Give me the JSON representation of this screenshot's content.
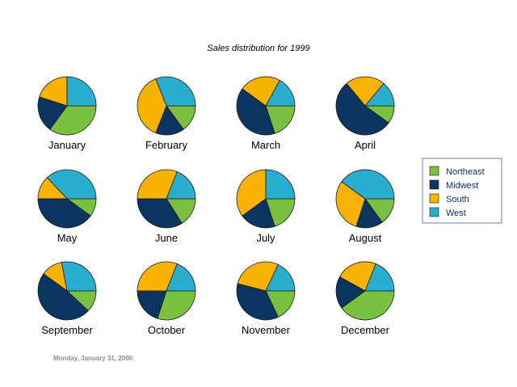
{
  "chart_data": {
    "type": "pie",
    "title": "Sales distribution for 1999",
    "footer": "Monday, January 31, 2000",
    "series_names": [
      "Northeast",
      "Midwest",
      "South",
      "West"
    ],
    "colors": {
      "Northeast": "#7ac142",
      "Midwest": "#0b3560",
      "South": "#f8b200",
      "West": "#2aaed0"
    },
    "legend_position": "right",
    "pies": [
      {
        "label": "January",
        "values": [
          35,
          20,
          20,
          25
        ]
      },
      {
        "label": "February",
        "values": [
          15,
          16,
          38,
          31
        ]
      },
      {
        "label": "March",
        "values": [
          20,
          40,
          23,
          17
        ]
      },
      {
        "label": "April",
        "values": [
          10,
          54,
          22,
          14
        ]
      },
      {
        "label": "May",
        "values": [
          10,
          40,
          13,
          37
        ]
      },
      {
        "label": "June",
        "values": [
          16,
          34,
          31,
          19
        ]
      },
      {
        "label": "July",
        "values": [
          20,
          20,
          35,
          25
        ]
      },
      {
        "label": "August",
        "values": [
          15,
          15,
          30,
          40
        ]
      },
      {
        "label": "September",
        "values": [
          12,
          48,
          12,
          28
        ]
      },
      {
        "label": "October",
        "values": [
          30,
          20,
          31,
          19
        ]
      },
      {
        "label": "November",
        "values": [
          18,
          36,
          28,
          18
        ]
      },
      {
        "label": "December",
        "values": [
          40,
          18,
          23,
          19
        ]
      }
    ]
  }
}
